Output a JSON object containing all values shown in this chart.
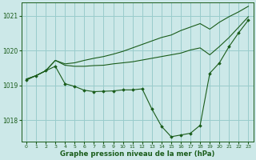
{
  "hours": [
    0,
    1,
    2,
    3,
    4,
    5,
    6,
    7,
    8,
    9,
    10,
    11,
    12,
    13,
    14,
    15,
    16,
    17,
    18,
    19,
    20,
    21,
    22,
    23
  ],
  "line_main": [
    1019.15,
    1019.28,
    1019.42,
    1019.55,
    1019.05,
    1018.97,
    1018.86,
    1018.82,
    1018.83,
    1018.84,
    1018.87,
    1018.87,
    1018.9,
    1018.32,
    1017.82,
    1017.52,
    1017.57,
    1017.62,
    1017.85,
    1019.35,
    1019.65,
    1020.12,
    1020.52,
    1020.88
  ],
  "line_mid": [
    1019.18,
    1019.28,
    1019.42,
    1019.72,
    1019.58,
    1019.55,
    1019.55,
    1019.57,
    1019.58,
    1019.62,
    1019.65,
    1019.68,
    1019.73,
    1019.78,
    1019.83,
    1019.88,
    1019.93,
    1020.02,
    1020.08,
    1019.88,
    1020.12,
    1020.38,
    1020.68,
    1020.98
  ],
  "line_top": [
    1019.18,
    1019.28,
    1019.42,
    1019.72,
    1019.62,
    1019.65,
    1019.72,
    1019.78,
    1019.83,
    1019.9,
    1019.98,
    1020.08,
    1020.18,
    1020.28,
    1020.38,
    1020.45,
    1020.58,
    1020.68,
    1020.78,
    1020.62,
    1020.82,
    1020.98,
    1021.12,
    1021.28
  ],
  "bg_color": "#cce8e8",
  "line_color": "#1a5c1a",
  "grid_color": "#99cccc",
  "xlabel": "Graphe pression niveau de la mer (hPa)",
  "ylim_min": 1017.38,
  "ylim_max": 1021.38,
  "yticks": [
    1018,
    1019,
    1020,
    1021
  ],
  "xticks": [
    0,
    1,
    2,
    3,
    4,
    5,
    6,
    7,
    8,
    9,
    10,
    11,
    12,
    13,
    14,
    15,
    16,
    17,
    18,
    19,
    20,
    21,
    22,
    23
  ]
}
